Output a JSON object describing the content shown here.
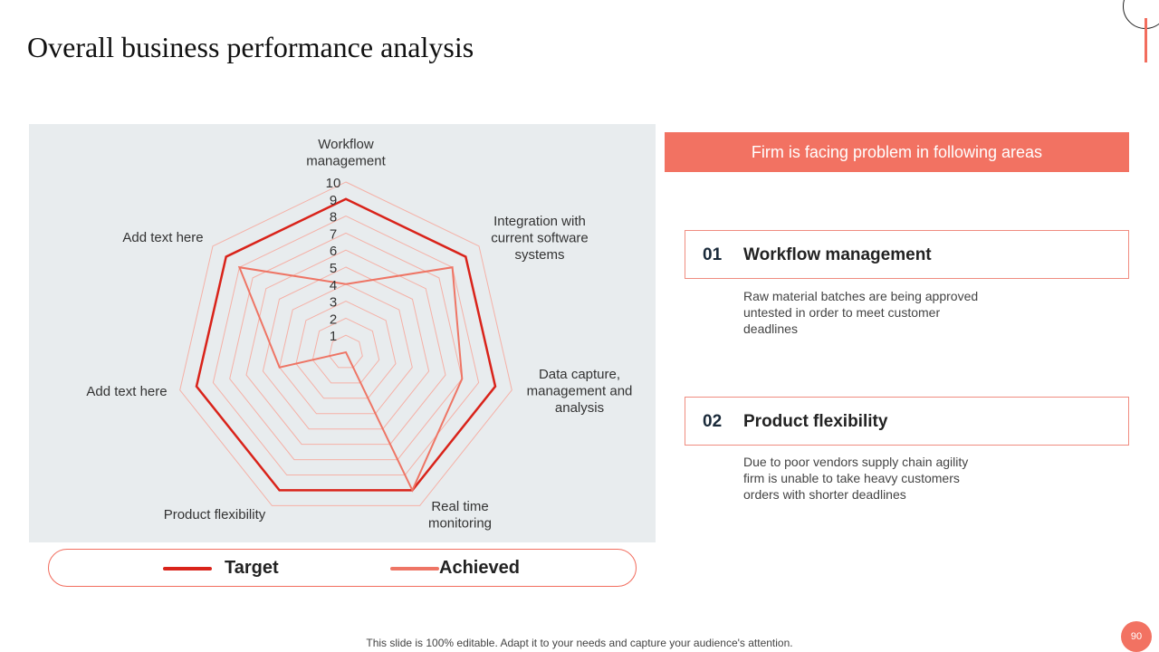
{
  "slide": {
    "title": "Overall business performance analysis",
    "footer_note": "This slide is 100% editable. Adapt it to your needs and capture your audience's attention.",
    "page_number": "90"
  },
  "colors": {
    "accent": "#f27262",
    "target_line": "#d9231a",
    "achieved_line": "#ee7565",
    "grid_line": "#f5b0a6",
    "panel_bg": "#e8ecee"
  },
  "chart_data": {
    "type": "radar",
    "axes": [
      "Workflow management",
      "Integration with current software systems",
      "Data capture, management and analysis",
      "Real time monitoring",
      "Product flexibility",
      "Add text here",
      "Add text here"
    ],
    "axis_label_lines": [
      [
        "Workflow",
        "management"
      ],
      [
        "Integration with",
        "current software",
        "systems"
      ],
      [
        "Data capture,",
        "management and",
        "analysis"
      ],
      [
        "Real time",
        "monitoring"
      ],
      [
        "Product flexibility"
      ],
      [
        "Add text here"
      ],
      [
        "Add text here"
      ]
    ],
    "radial_ticks": [
      "1",
      "2",
      "3",
      "4",
      "5",
      "6",
      "7",
      "8",
      "9",
      "10"
    ],
    "rmin": 0,
    "rmax": 10,
    "series": [
      {
        "name": "Target",
        "values": [
          9,
          9,
          9,
          9,
          9,
          9,
          9
        ]
      },
      {
        "name": "Achieved",
        "values": [
          4,
          8,
          7,
          9,
          0,
          4,
          8
        ]
      }
    ],
    "legend": [
      "Target",
      "Achieved"
    ]
  },
  "panel": {
    "header": "Firm is facing problem in following areas",
    "items": [
      {
        "number": "01",
        "title": "Workflow management",
        "description": "Raw material batches are being approved untested in order to meet customer deadlines"
      },
      {
        "number": "02",
        "title": "Product flexibility",
        "description": "Due to poor vendors supply chain agility firm is unable to take heavy customers orders with shorter deadlines"
      }
    ]
  }
}
